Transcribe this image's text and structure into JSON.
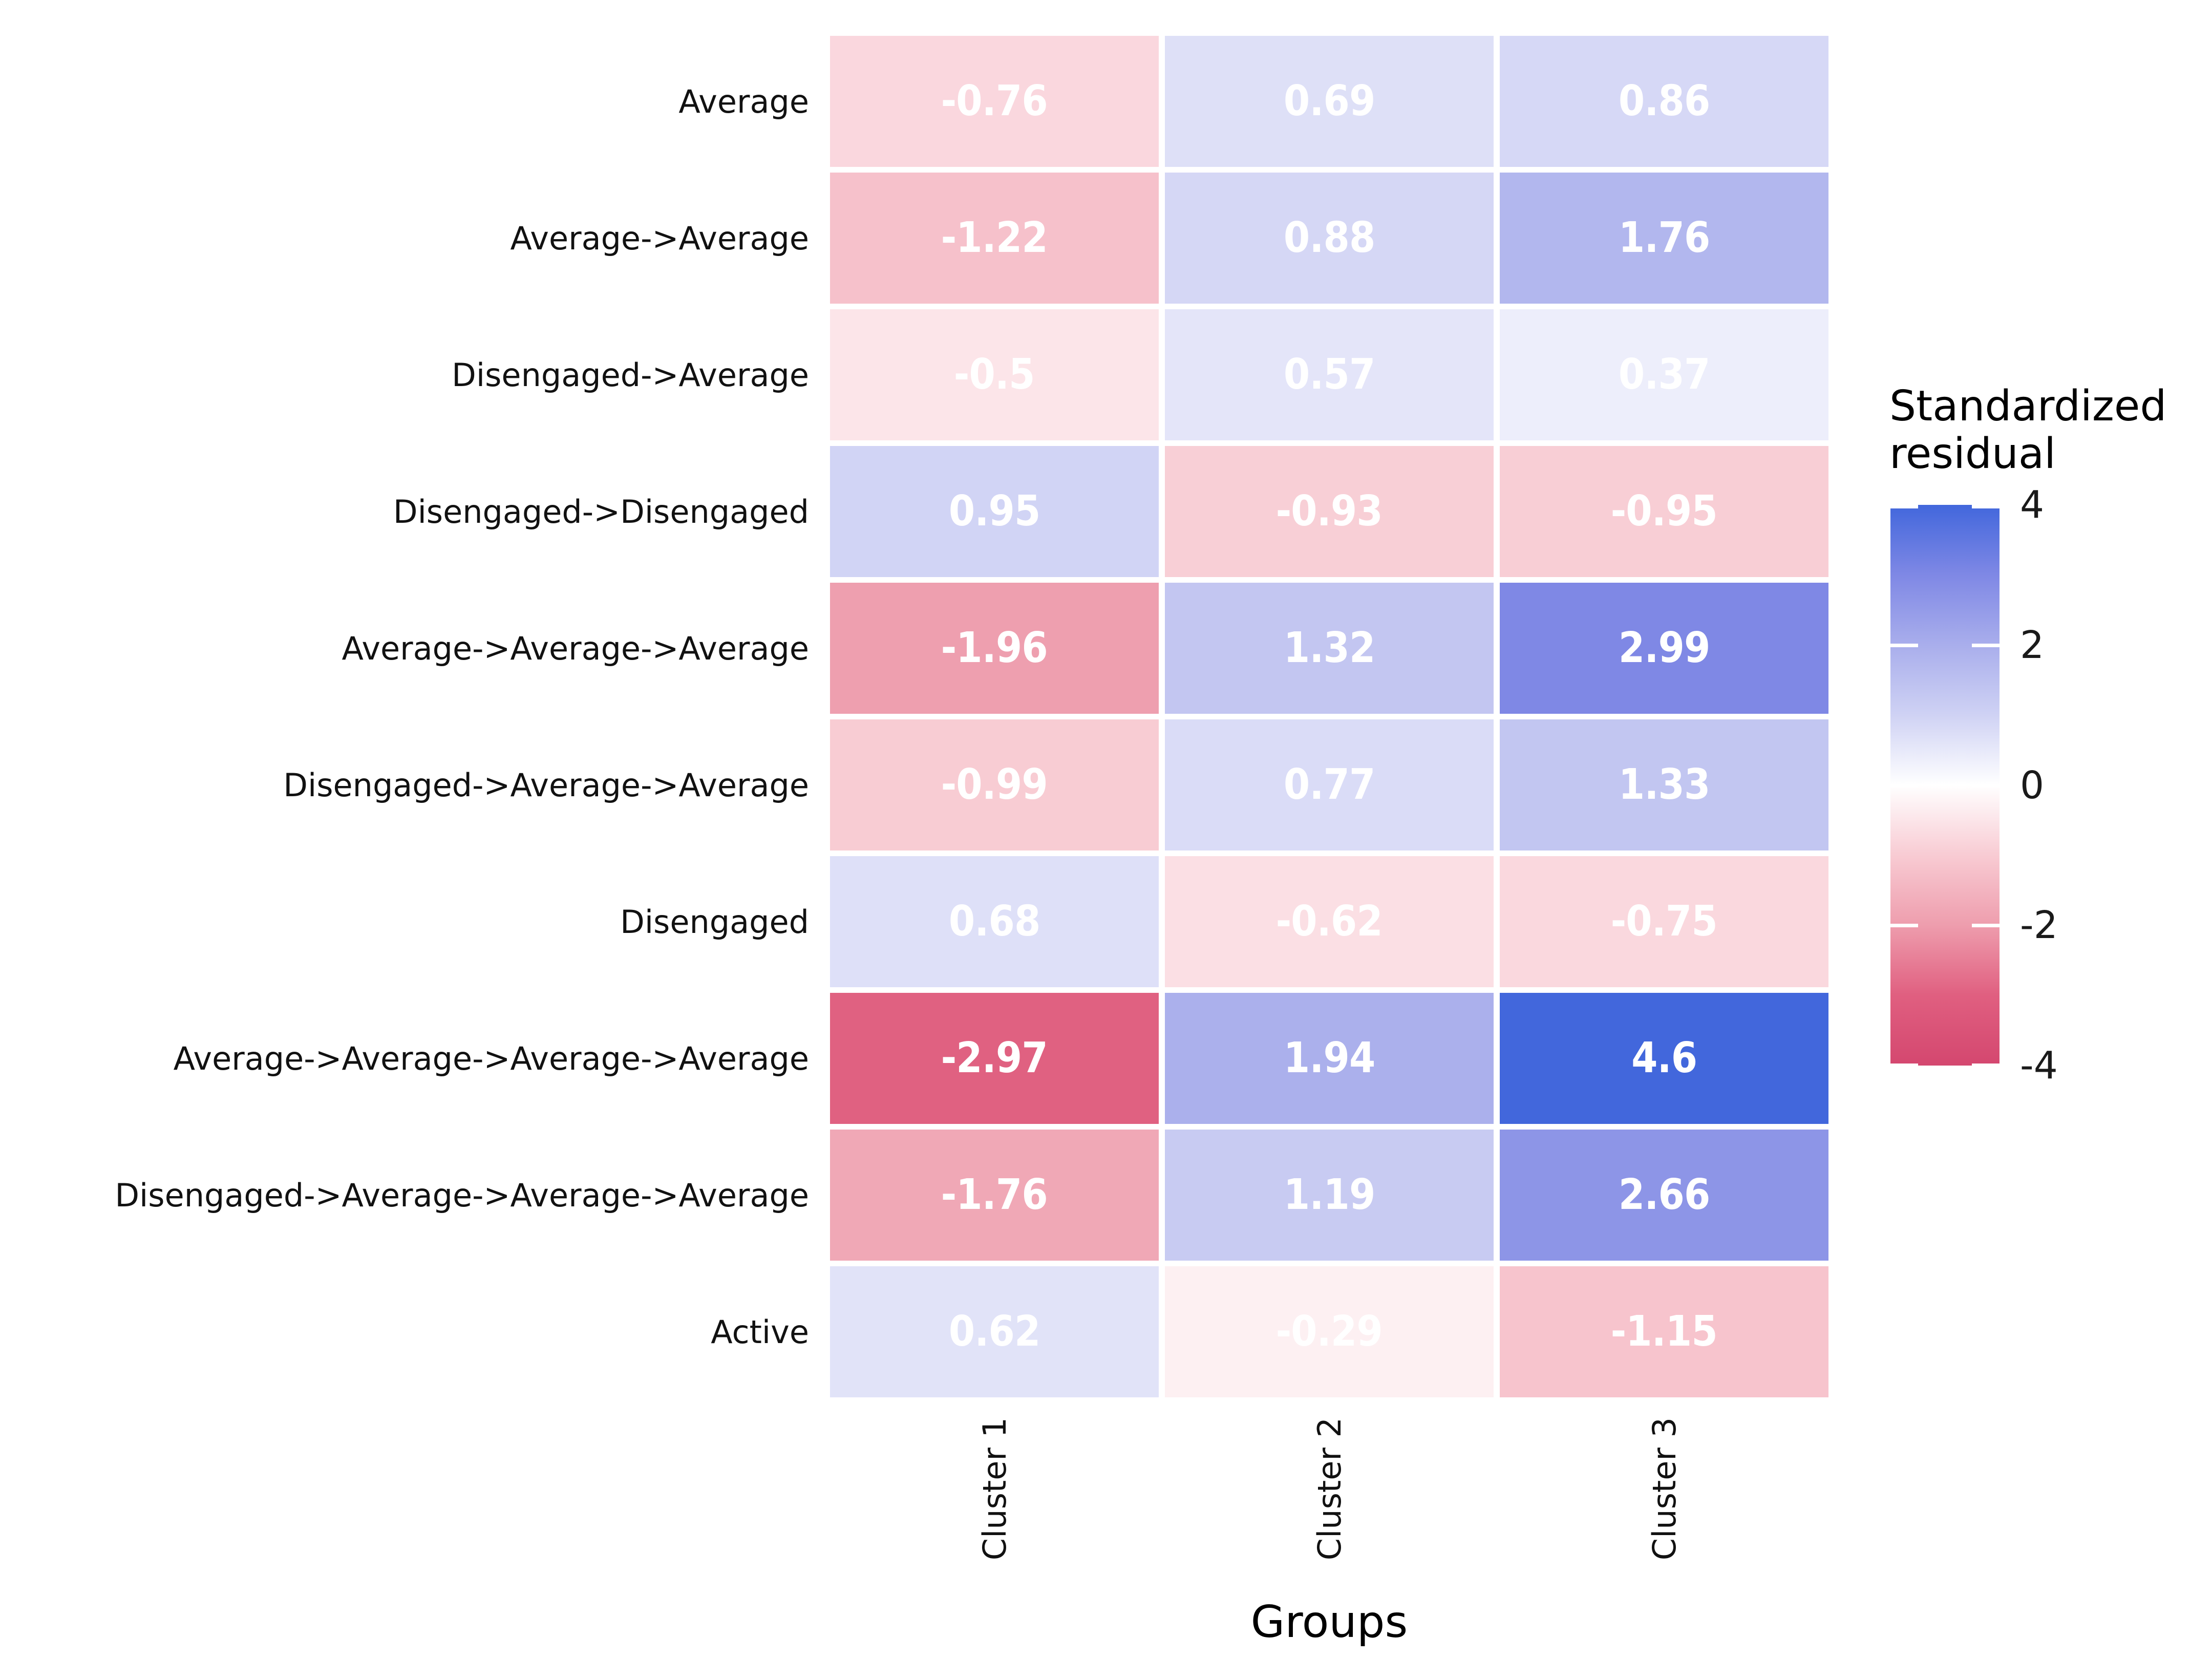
{
  "chart_data": {
    "type": "heatmap",
    "title": "",
    "xlabel": "Groups",
    "ylabel": "",
    "categories_x": [
      "Cluster 1",
      "Cluster 2",
      "Cluster 3"
    ],
    "categories_y": [
      "Average",
      "Average->Average",
      "Disengaged->Average",
      "Disengaged->Disengaged",
      "Average->Average->Average",
      "Disengaged->Average->Average",
      "Disengaged",
      "Average->Average->Average->Average",
      "Disengaged->Average->Average->Average",
      "Active"
    ],
    "values": [
      [
        -0.76,
        0.69,
        0.86
      ],
      [
        -1.22,
        0.88,
        1.76
      ],
      [
        -0.5,
        0.57,
        0.37
      ],
      [
        0.95,
        -0.93,
        -0.95
      ],
      [
        -1.96,
        1.32,
        2.99
      ],
      [
        -0.99,
        0.77,
        1.33
      ],
      [
        0.68,
        -0.62,
        -0.75
      ],
      [
        -2.97,
        1.94,
        4.6
      ],
      [
        -1.76,
        1.19,
        2.66
      ],
      [
        0.62,
        -0.29,
        -1.15
      ]
    ],
    "legend": {
      "title": "Standardized residual",
      "title_lines": [
        "Standardized",
        "residual"
      ],
      "ticks": [
        4,
        2,
        0,
        -2,
        -4
      ],
      "range": [
        -4,
        4
      ],
      "position": "right"
    },
    "palette": {
      "anchors": [
        {
          "v": -4,
          "c": "#D4476F"
        },
        {
          "v": -3,
          "c": "#E05F80"
        },
        {
          "v": -2,
          "c": "#EE9DAD"
        },
        {
          "v": -1,
          "c": "#F8CBD3"
        },
        {
          "v": 0,
          "c": "#FFFFFF"
        },
        {
          "v": 1,
          "c": "#CFD2F4"
        },
        {
          "v": 2,
          "c": "#A9AEEC"
        },
        {
          "v": 3,
          "c": "#7F88E5"
        },
        {
          "v": 4,
          "c": "#4267DC"
        }
      ]
    },
    "colors": {
      "cell_text": "#FFFFFF",
      "axis_text": "#111111",
      "background": "#FFFFFF"
    },
    "grid": false
  }
}
